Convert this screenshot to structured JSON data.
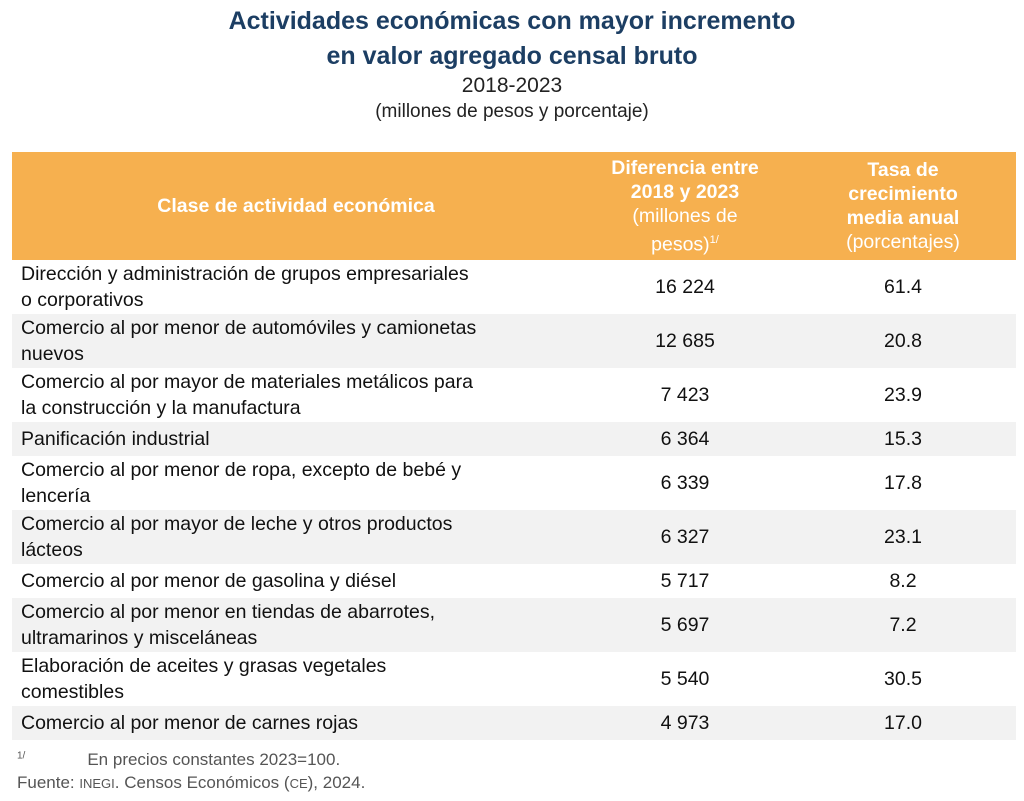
{
  "title": [
    "Actividades económicas con mayor incremento",
    "en valor agregado censal bruto"
  ],
  "period": "2018-2023",
  "units": "(millones de pesos y porcentaje)",
  "headers": {
    "col1": "Clase de actividad económica",
    "col2_bold": [
      "Diferencia entre",
      "2018 y 2023"
    ],
    "col2_light": [
      "(millones de",
      "pesos)"
    ],
    "col2_note": "1/",
    "col3_bold": [
      "Tasa de",
      "crecimiento",
      "media anual"
    ],
    "col3_light": "(porcentajes)"
  },
  "rows": [
    {
      "activity": [
        "Dirección y administración de grupos empresariales",
        "o corporativos"
      ],
      "difference": "16 224",
      "rate": "61.4"
    },
    {
      "activity": [
        "Comercio al por menor de automóviles y camionetas",
        "nuevos"
      ],
      "difference": "12 685",
      "rate": "20.8"
    },
    {
      "activity": [
        "Comercio al por mayor de materiales metálicos para",
        "la construcción y la manufactura"
      ],
      "difference": "7 423",
      "rate": "23.9"
    },
    {
      "activity": [
        "Panificación industrial"
      ],
      "difference": "6 364",
      "rate": "15.3"
    },
    {
      "activity": [
        "Comercio al por menor de ropa, excepto de bebé y",
        "lencería"
      ],
      "difference": "6 339",
      "rate": "17.8"
    },
    {
      "activity": [
        "Comercio al por mayor de leche y otros productos",
        "lácteos"
      ],
      "difference": "6 327",
      "rate": "23.1"
    },
    {
      "activity": [
        "Comercio al por menor de gasolina y diésel"
      ],
      "difference": "5 717",
      "rate": "8.2"
    },
    {
      "activity": [
        "Comercio al por menor en tiendas de abarrotes,",
        "ultramarinos y misceláneas"
      ],
      "difference": "5 697",
      "rate": "7.2"
    },
    {
      "activity": [
        "Elaboración de aceites y grasas vegetales",
        "comestibles"
      ],
      "difference": "5 540",
      "rate": "30.5"
    },
    {
      "activity": [
        "Comercio al por menor de carnes rojas"
      ],
      "difference": "4 973",
      "rate": "17.0"
    }
  ],
  "footnote": {
    "mark": "1/",
    "text": "En precios constantes 2023=100."
  },
  "source": {
    "label": "Fuente: ",
    "org": "INEGI",
    "text1": ". Censos Económicos (",
    "abbr": "CE",
    "text2": "), 2024."
  },
  "colors": {
    "header": "#f6b04f",
    "title": "#1c3e63",
    "stripe": "#f2f2f2"
  }
}
